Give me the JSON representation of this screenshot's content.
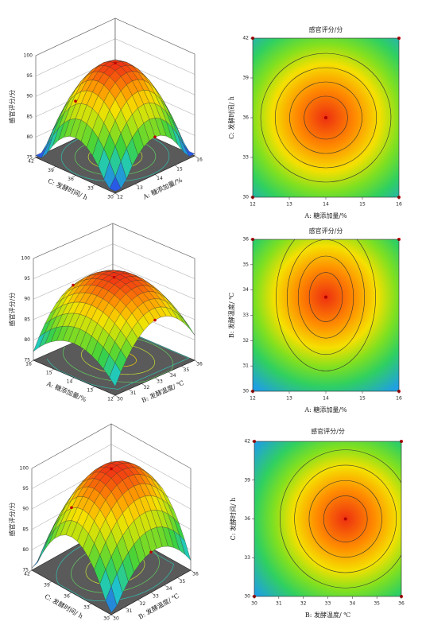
{
  "chart_data": [
    {
      "type": "surface",
      "zlabel": "感官评分/分",
      "xlabel": "C: 发酵时间/ h",
      "xlim": [
        30,
        42
      ],
      "xticks": [
        30,
        33,
        36,
        39,
        42
      ],
      "ylabel": "A: 糖添加量/%",
      "ylim": [
        12,
        16
      ],
      "yticks": [
        12,
        13,
        14,
        15,
        16
      ],
      "zlim": [
        75,
        100
      ],
      "zticks": [
        75,
        80,
        85,
        90,
        95,
        100
      ]
    },
    {
      "type": "contour",
      "title": "感官评分/分",
      "xlabel": "A: 糖添加量/%",
      "xlim": [
        12,
        16
      ],
      "xticks": [
        12,
        13,
        14,
        15,
        16
      ],
      "ylabel": "C: 发酵时间/ h",
      "ylim": [
        30,
        42
      ],
      "yticks": [
        30,
        33,
        36,
        39,
        42
      ]
    },
    {
      "type": "surface",
      "zlabel": "感官评分/分",
      "xlabel": "A: 糖添加量/%",
      "xlim": [
        12,
        16
      ],
      "xticks": [
        12,
        13,
        14,
        15,
        16
      ],
      "ylabel": "B: 发酵温度/ ℃",
      "ylim": [
        30,
        36
      ],
      "yticks": [
        30,
        31,
        32,
        33,
        34,
        35,
        36
      ],
      "zlim": [
        75,
        100
      ],
      "zticks": [
        75,
        80,
        85,
        90,
        95,
        100
      ]
    },
    {
      "type": "contour",
      "title": "感官评分/分",
      "xlabel": "A: 糖添加量/%",
      "xlim": [
        12,
        16
      ],
      "xticks": [
        12,
        13,
        14,
        15,
        16
      ],
      "ylabel": "B: 发酵温度/ ℃",
      "ylim": [
        30,
        36
      ],
      "yticks": [
        30,
        31,
        32,
        33,
        34,
        35,
        36
      ]
    },
    {
      "type": "surface",
      "zlabel": "感官评分/分",
      "xlabel": "C: 发酵时间/ h",
      "xlim": [
        30,
        42
      ],
      "xticks": [
        30,
        33,
        36,
        39,
        42
      ],
      "ylabel": "B: 发酵温度/ ℃",
      "ylim": [
        30,
        36
      ],
      "yticks": [
        30,
        31,
        32,
        33,
        34,
        35,
        36
      ],
      "zlim": [
        75,
        100
      ],
      "zticks": [
        75,
        80,
        85,
        90,
        95,
        100
      ]
    },
    {
      "type": "contour",
      "title": "感官评分/分",
      "xlabel": "B: 发酵温度/ ℃",
      "xlim": [
        30,
        36
      ],
      "xticks": [
        30,
        31,
        32,
        33,
        34,
        35,
        36
      ],
      "ylabel": "C: 发酵时间/ h",
      "ylim": [
        30,
        42
      ],
      "yticks": [
        30,
        33,
        36,
        39,
        42
      ]
    }
  ]
}
